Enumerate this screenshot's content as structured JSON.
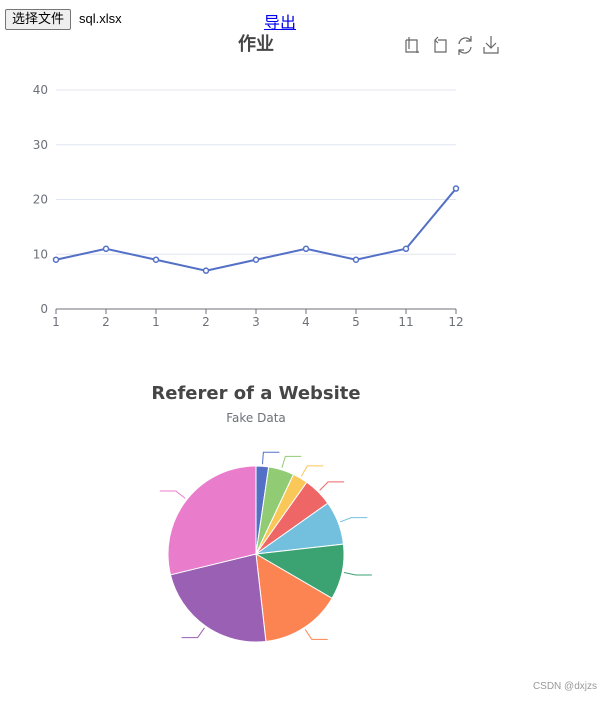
{
  "controls": {
    "file_button_label": "选择文件",
    "file_name": "sql.xlsx",
    "export_link": "导出"
  },
  "toolbox": {
    "icons": [
      "crop-icon",
      "undo-icon",
      "restore-icon",
      "download-icon"
    ]
  },
  "watermark": "CSDN @dxjzs",
  "chart_data": [
    {
      "type": "line",
      "title": "作业",
      "categories": [
        "1",
        "2",
        "1",
        "2",
        "3",
        "4",
        "5",
        "11",
        "12"
      ],
      "values": [
        9,
        11,
        9,
        7,
        9,
        11,
        9,
        11,
        22
      ],
      "ylim": [
        0,
        40
      ],
      "yticks": [
        0,
        10,
        20,
        30,
        40
      ],
      "grid": true,
      "color": "#5470c6"
    },
    {
      "type": "pie",
      "title": "Referer of a Website",
      "subtitle": "Fake Data",
      "slices": [
        {
          "value": 2.3,
          "color": "#5470c6"
        },
        {
          "value": 4.7,
          "color": "#91cc75"
        },
        {
          "value": 2.8,
          "color": "#fac858"
        },
        {
          "value": 5.4,
          "color": "#ee6666"
        },
        {
          "value": 8.0,
          "color": "#73c0de"
        },
        {
          "value": 10.2,
          "color": "#3ba272"
        },
        {
          "value": 14.8,
          "color": "#fc8452"
        },
        {
          "value": 23.0,
          "color": "#9a60b4"
        },
        {
          "value": 28.8,
          "color": "#ea7ccc"
        }
      ]
    }
  ]
}
